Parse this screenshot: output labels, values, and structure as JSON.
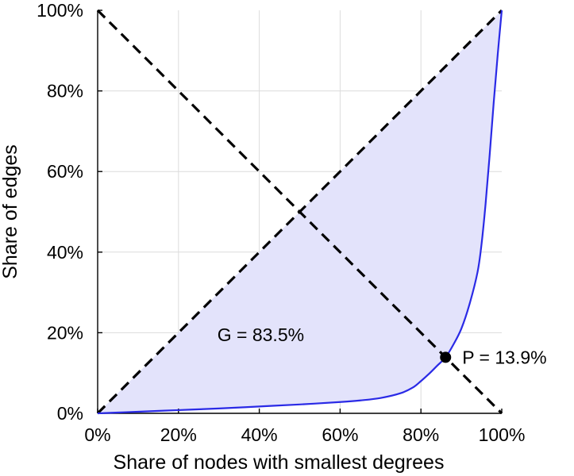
{
  "chart_data": {
    "type": "line",
    "title": "",
    "xlabel": "Share of nodes with smallest degrees",
    "ylabel": "Share of edges",
    "xlim": [
      0,
      100
    ],
    "ylim": [
      0,
      100
    ],
    "x_ticks": [
      "0%",
      "20%",
      "40%",
      "60%",
      "80%",
      "100%"
    ],
    "y_ticks": [
      "0%",
      "20%",
      "40%",
      "60%",
      "80%",
      "100%"
    ],
    "grid": true,
    "legend": "none",
    "colors": {
      "curve": "#2a2ae6",
      "fill": "#e3e3fb",
      "reference_lines": "#000000",
      "marker": "#000000"
    },
    "series": [
      {
        "x": [
          0,
          5,
          10,
          20,
          30,
          40,
          50,
          60,
          65,
          70,
          75,
          78,
          80,
          82,
          84,
          86.1,
          88,
          90,
          92,
          94,
          95,
          96,
          97,
          98,
          99,
          100
        ],
        "y": [
          0,
          0.2,
          0.4,
          0.8,
          1.2,
          1.7,
          2.2,
          2.8,
          3.2,
          3.8,
          5.0,
          6.4,
          8.0,
          9.8,
          11.8,
          13.9,
          17.0,
          21.0,
          27.0,
          35.0,
          42.0,
          52.0,
          64.0,
          77.0,
          89.0,
          100.0
        ]
      }
    ],
    "reference_lines": [
      {
        "x": [
          0,
          100
        ],
        "y": [
          0,
          100
        ]
      },
      {
        "x": [
          0,
          100
        ],
        "y": [
          100,
          0
        ]
      }
    ],
    "annotations": [
      {
        "text": "G = 83.5%",
        "x": 38,
        "y": 19.5
      },
      {
        "text": "P = 13.9%",
        "x": 86.1,
        "y": 13.9,
        "marker": true
      }
    ]
  }
}
